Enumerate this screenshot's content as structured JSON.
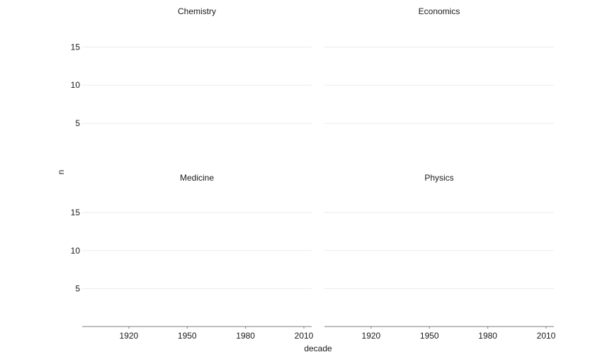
{
  "chart_data": {
    "type": "line",
    "facet_layout": "2x2",
    "panels": [
      {
        "title": "Chemistry",
        "series": []
      },
      {
        "title": "Economics",
        "series": []
      },
      {
        "title": "Medicine",
        "series": []
      },
      {
        "title": "Physics",
        "series": []
      }
    ],
    "xlabel": "decade",
    "ylabel": "n",
    "x_ticks": [
      1920,
      1950,
      1980,
      2010
    ],
    "y_ticks": [
      5,
      10,
      15
    ],
    "xlim": [
      1896,
      2014
    ],
    "ylim": [
      0,
      18
    ],
    "grid": "horizontal major",
    "legend": "none"
  }
}
